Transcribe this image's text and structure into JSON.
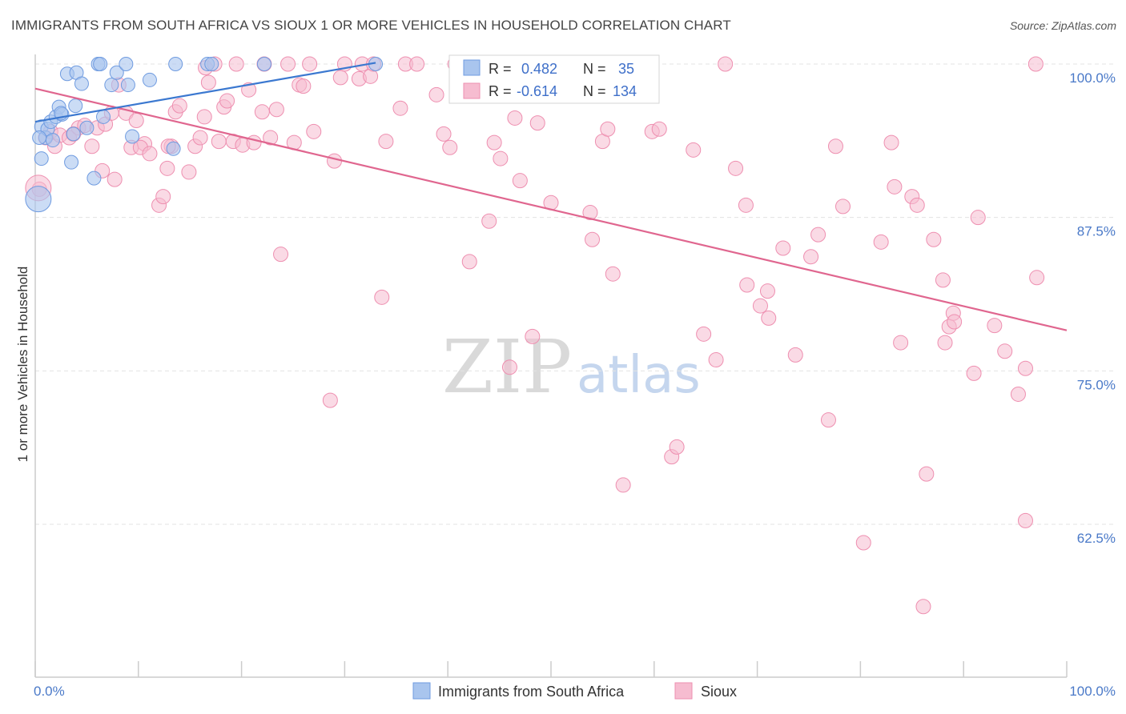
{
  "header": {
    "title": "IMMIGRANTS FROM SOUTH AFRICA VS SIOUX 1 OR MORE VEHICLES IN HOUSEHOLD CORRELATION CHART",
    "source": "Source: ZipAtlas.com"
  },
  "watermark": {
    "zip": "ZIP",
    "atlas": "atlas"
  },
  "colors": {
    "blue_fill": "#a9c5ee",
    "blue_stroke": "#6f9be0",
    "blue_line": "#3b78d0",
    "pink_fill": "#f6bcd0",
    "pink_stroke": "#ee8fb0",
    "pink_line": "#e0668f",
    "grid": "#e3e3e3",
    "axis": "#cccccc",
    "tick_text": "#4a79c8"
  },
  "legend": {
    "rows": [
      {
        "r_label": "R =",
        "r_value": "0.482",
        "n_label": "N =",
        "n_value": "35"
      },
      {
        "r_label": "R =",
        "r_value": "-0.614",
        "n_label": "N =",
        "n_value": "134"
      }
    ]
  },
  "chart_data": {
    "type": "scatter",
    "title": "IMMIGRANTS FROM SOUTH AFRICA VS SIOUX 1 OR MORE VEHICLES IN HOUSEHOLD CORRELATION CHART",
    "xlabel": "",
    "ylabel": "1 or more Vehicles in Household",
    "xlim": [
      0,
      100
    ],
    "ylim": [
      50,
      101.5
    ],
    "x_tick_labels": [
      "0.0%",
      "100.0%"
    ],
    "y_ticks": [
      100,
      87.5,
      75,
      62.5
    ],
    "y_tick_labels": [
      "100.0%",
      "87.5%",
      "75.0%",
      "62.5%"
    ],
    "grid": true,
    "legend_position": "top-center",
    "series": [
      {
        "name": "Immigrants from South Africa",
        "color": "blue",
        "r": 0.482,
        "n": 35,
        "trend": {
          "x": [
            0,
            33
          ],
          "y": [
            95.3,
            100.1
          ]
        },
        "points": [
          [
            0.3,
            89.0
          ],
          [
            0.6,
            92.3
          ],
          [
            0.6,
            94.9
          ],
          [
            1.0,
            94.0
          ],
          [
            1.2,
            94.7
          ],
          [
            1.5,
            95.3
          ],
          [
            1.7,
            93.8
          ],
          [
            2.0,
            95.7
          ],
          [
            2.3,
            96.5
          ],
          [
            2.6,
            95.9
          ],
          [
            3.1,
            99.2
          ],
          [
            3.5,
            92.0
          ],
          [
            3.7,
            94.3
          ],
          [
            3.9,
            96.6
          ],
          [
            4.0,
            99.3
          ],
          [
            4.5,
            98.4
          ],
          [
            5.0,
            94.8
          ],
          [
            5.7,
            90.7
          ],
          [
            6.1,
            100.0
          ],
          [
            6.3,
            100.0
          ],
          [
            6.6,
            95.7
          ],
          [
            7.4,
            98.3
          ],
          [
            7.9,
            99.3
          ],
          [
            8.8,
            100.0
          ],
          [
            9.0,
            98.3
          ],
          [
            9.4,
            94.1
          ],
          [
            11.1,
            98.7
          ],
          [
            13.4,
            93.1
          ],
          [
            13.6,
            100.0
          ],
          [
            16.7,
            100.0
          ],
          [
            17.1,
            100.0
          ],
          [
            22.2,
            100.0
          ],
          [
            33.0,
            100.0
          ],
          [
            0.4,
            94.0
          ],
          [
            2.5,
            96.0
          ]
        ]
      },
      {
        "name": "Sioux",
        "color": "pink",
        "r": -0.614,
        "n": 134,
        "trend": {
          "x": [
            0,
            100
          ],
          "y": [
            98.0,
            78.3
          ]
        },
        "points": [
          [
            0.4,
            89.8
          ],
          [
            1.0,
            94.0
          ],
          [
            1.5,
            94.5
          ],
          [
            1.9,
            93.3
          ],
          [
            2.4,
            94.2
          ],
          [
            3.3,
            94.0
          ],
          [
            4.2,
            94.8
          ],
          [
            4.8,
            95.0
          ],
          [
            5.5,
            93.3
          ],
          [
            6.0,
            94.8
          ],
          [
            6.5,
            91.3
          ],
          [
            6.8,
            95.1
          ],
          [
            7.4,
            96.0
          ],
          [
            7.7,
            90.6
          ],
          [
            8.1,
            98.3
          ],
          [
            8.8,
            96.0
          ],
          [
            9.3,
            93.2
          ],
          [
            9.8,
            95.4
          ],
          [
            10.6,
            93.5
          ],
          [
            10.2,
            93.2
          ],
          [
            11.1,
            92.7
          ],
          [
            12.0,
            88.5
          ],
          [
            12.4,
            89.2
          ],
          [
            12.8,
            91.5
          ],
          [
            13.2,
            93.3
          ],
          [
            13.6,
            96.1
          ],
          [
            14.0,
            96.6
          ],
          [
            14.9,
            91.2
          ],
          [
            15.5,
            93.3
          ],
          [
            16.0,
            94.0
          ],
          [
            16.5,
            99.7
          ],
          [
            16.8,
            98.5
          ],
          [
            17.4,
            100.0
          ],
          [
            17.8,
            93.7
          ],
          [
            18.3,
            96.5
          ],
          [
            18.6,
            97.0
          ],
          [
            19.2,
            93.7
          ],
          [
            19.5,
            100.0
          ],
          [
            20.1,
            93.4
          ],
          [
            20.7,
            97.9
          ],
          [
            21.2,
            93.6
          ],
          [
            22.0,
            96.1
          ],
          [
            22.2,
            100.0
          ],
          [
            22.8,
            94.0
          ],
          [
            23.4,
            96.3
          ],
          [
            23.8,
            84.5
          ],
          [
            24.5,
            100.0
          ],
          [
            25.1,
            93.6
          ],
          [
            25.6,
            98.3
          ],
          [
            26.0,
            98.2
          ],
          [
            26.6,
            100.0
          ],
          [
            27.0,
            94.5
          ],
          [
            28.6,
            72.6
          ],
          [
            29.0,
            92.1
          ],
          [
            29.6,
            98.9
          ],
          [
            30.0,
            100.0
          ],
          [
            31.4,
            98.8
          ],
          [
            31.7,
            100.0
          ],
          [
            32.5,
            99.0
          ],
          [
            32.8,
            100.0
          ],
          [
            33.6,
            81.0
          ],
          [
            34.0,
            93.7
          ],
          [
            35.4,
            96.4
          ],
          [
            35.9,
            100.0
          ],
          [
            37.0,
            100.0
          ],
          [
            38.9,
            97.5
          ],
          [
            39.6,
            94.3
          ],
          [
            40.2,
            93.2
          ],
          [
            40.7,
            100.0
          ],
          [
            42.1,
            83.9
          ],
          [
            44.0,
            87.2
          ],
          [
            44.5,
            93.6
          ],
          [
            45.1,
            92.3
          ],
          [
            46.0,
            75.3
          ],
          [
            46.5,
            95.6
          ],
          [
            47.0,
            90.5
          ],
          [
            48.2,
            77.8
          ],
          [
            48.7,
            95.2
          ],
          [
            50.0,
            88.7
          ],
          [
            52.0,
            100.0
          ],
          [
            53.8,
            87.9
          ],
          [
            54.0,
            85.7
          ],
          [
            55.0,
            93.7
          ],
          [
            55.5,
            94.7
          ],
          [
            56.0,
            82.9
          ],
          [
            57.0,
            65.7
          ],
          [
            59.8,
            94.5
          ],
          [
            60.5,
            94.7
          ],
          [
            61.7,
            68.0
          ],
          [
            62.2,
            68.8
          ],
          [
            63.8,
            93.0
          ],
          [
            64.8,
            78.0
          ],
          [
            66.0,
            75.9
          ],
          [
            66.9,
            100.0
          ],
          [
            67.9,
            91.5
          ],
          [
            68.9,
            88.5
          ],
          [
            69.0,
            82.0
          ],
          [
            70.3,
            80.3
          ],
          [
            71.1,
            79.3
          ],
          [
            71.0,
            81.5
          ],
          [
            72.5,
            85.0
          ],
          [
            73.7,
            76.3
          ],
          [
            75.2,
            84.3
          ],
          [
            75.9,
            86.1
          ],
          [
            76.9,
            71.0
          ],
          [
            77.6,
            93.3
          ],
          [
            78.3,
            88.4
          ],
          [
            80.3,
            61.0
          ],
          [
            82.0,
            85.5
          ],
          [
            83.0,
            93.6
          ],
          [
            83.3,
            90.0
          ],
          [
            83.9,
            77.3
          ],
          [
            85.0,
            89.2
          ],
          [
            85.5,
            88.5
          ],
          [
            86.1,
            55.8
          ],
          [
            86.4,
            66.6
          ],
          [
            87.1,
            85.7
          ],
          [
            88.0,
            82.4
          ],
          [
            88.2,
            77.3
          ],
          [
            88.6,
            78.6
          ],
          [
            89.0,
            79.7
          ],
          [
            89.1,
            79.0
          ],
          [
            91.0,
            74.8
          ],
          [
            91.4,
            87.5
          ],
          [
            93.0,
            78.7
          ],
          [
            94.0,
            76.6
          ],
          [
            95.3,
            73.1
          ],
          [
            96.0,
            62.8
          ],
          [
            96.0,
            75.2
          ],
          [
            97.1,
            82.6
          ],
          [
            97.0,
            100.0
          ],
          [
            3.7,
            94.3
          ],
          [
            12.9,
            93.3
          ],
          [
            16.4,
            95.7
          ]
        ]
      }
    ]
  },
  "bottom_legend": {
    "items": [
      {
        "label": "Immigrants from South Africa"
      },
      {
        "label": "Sioux"
      }
    ]
  }
}
